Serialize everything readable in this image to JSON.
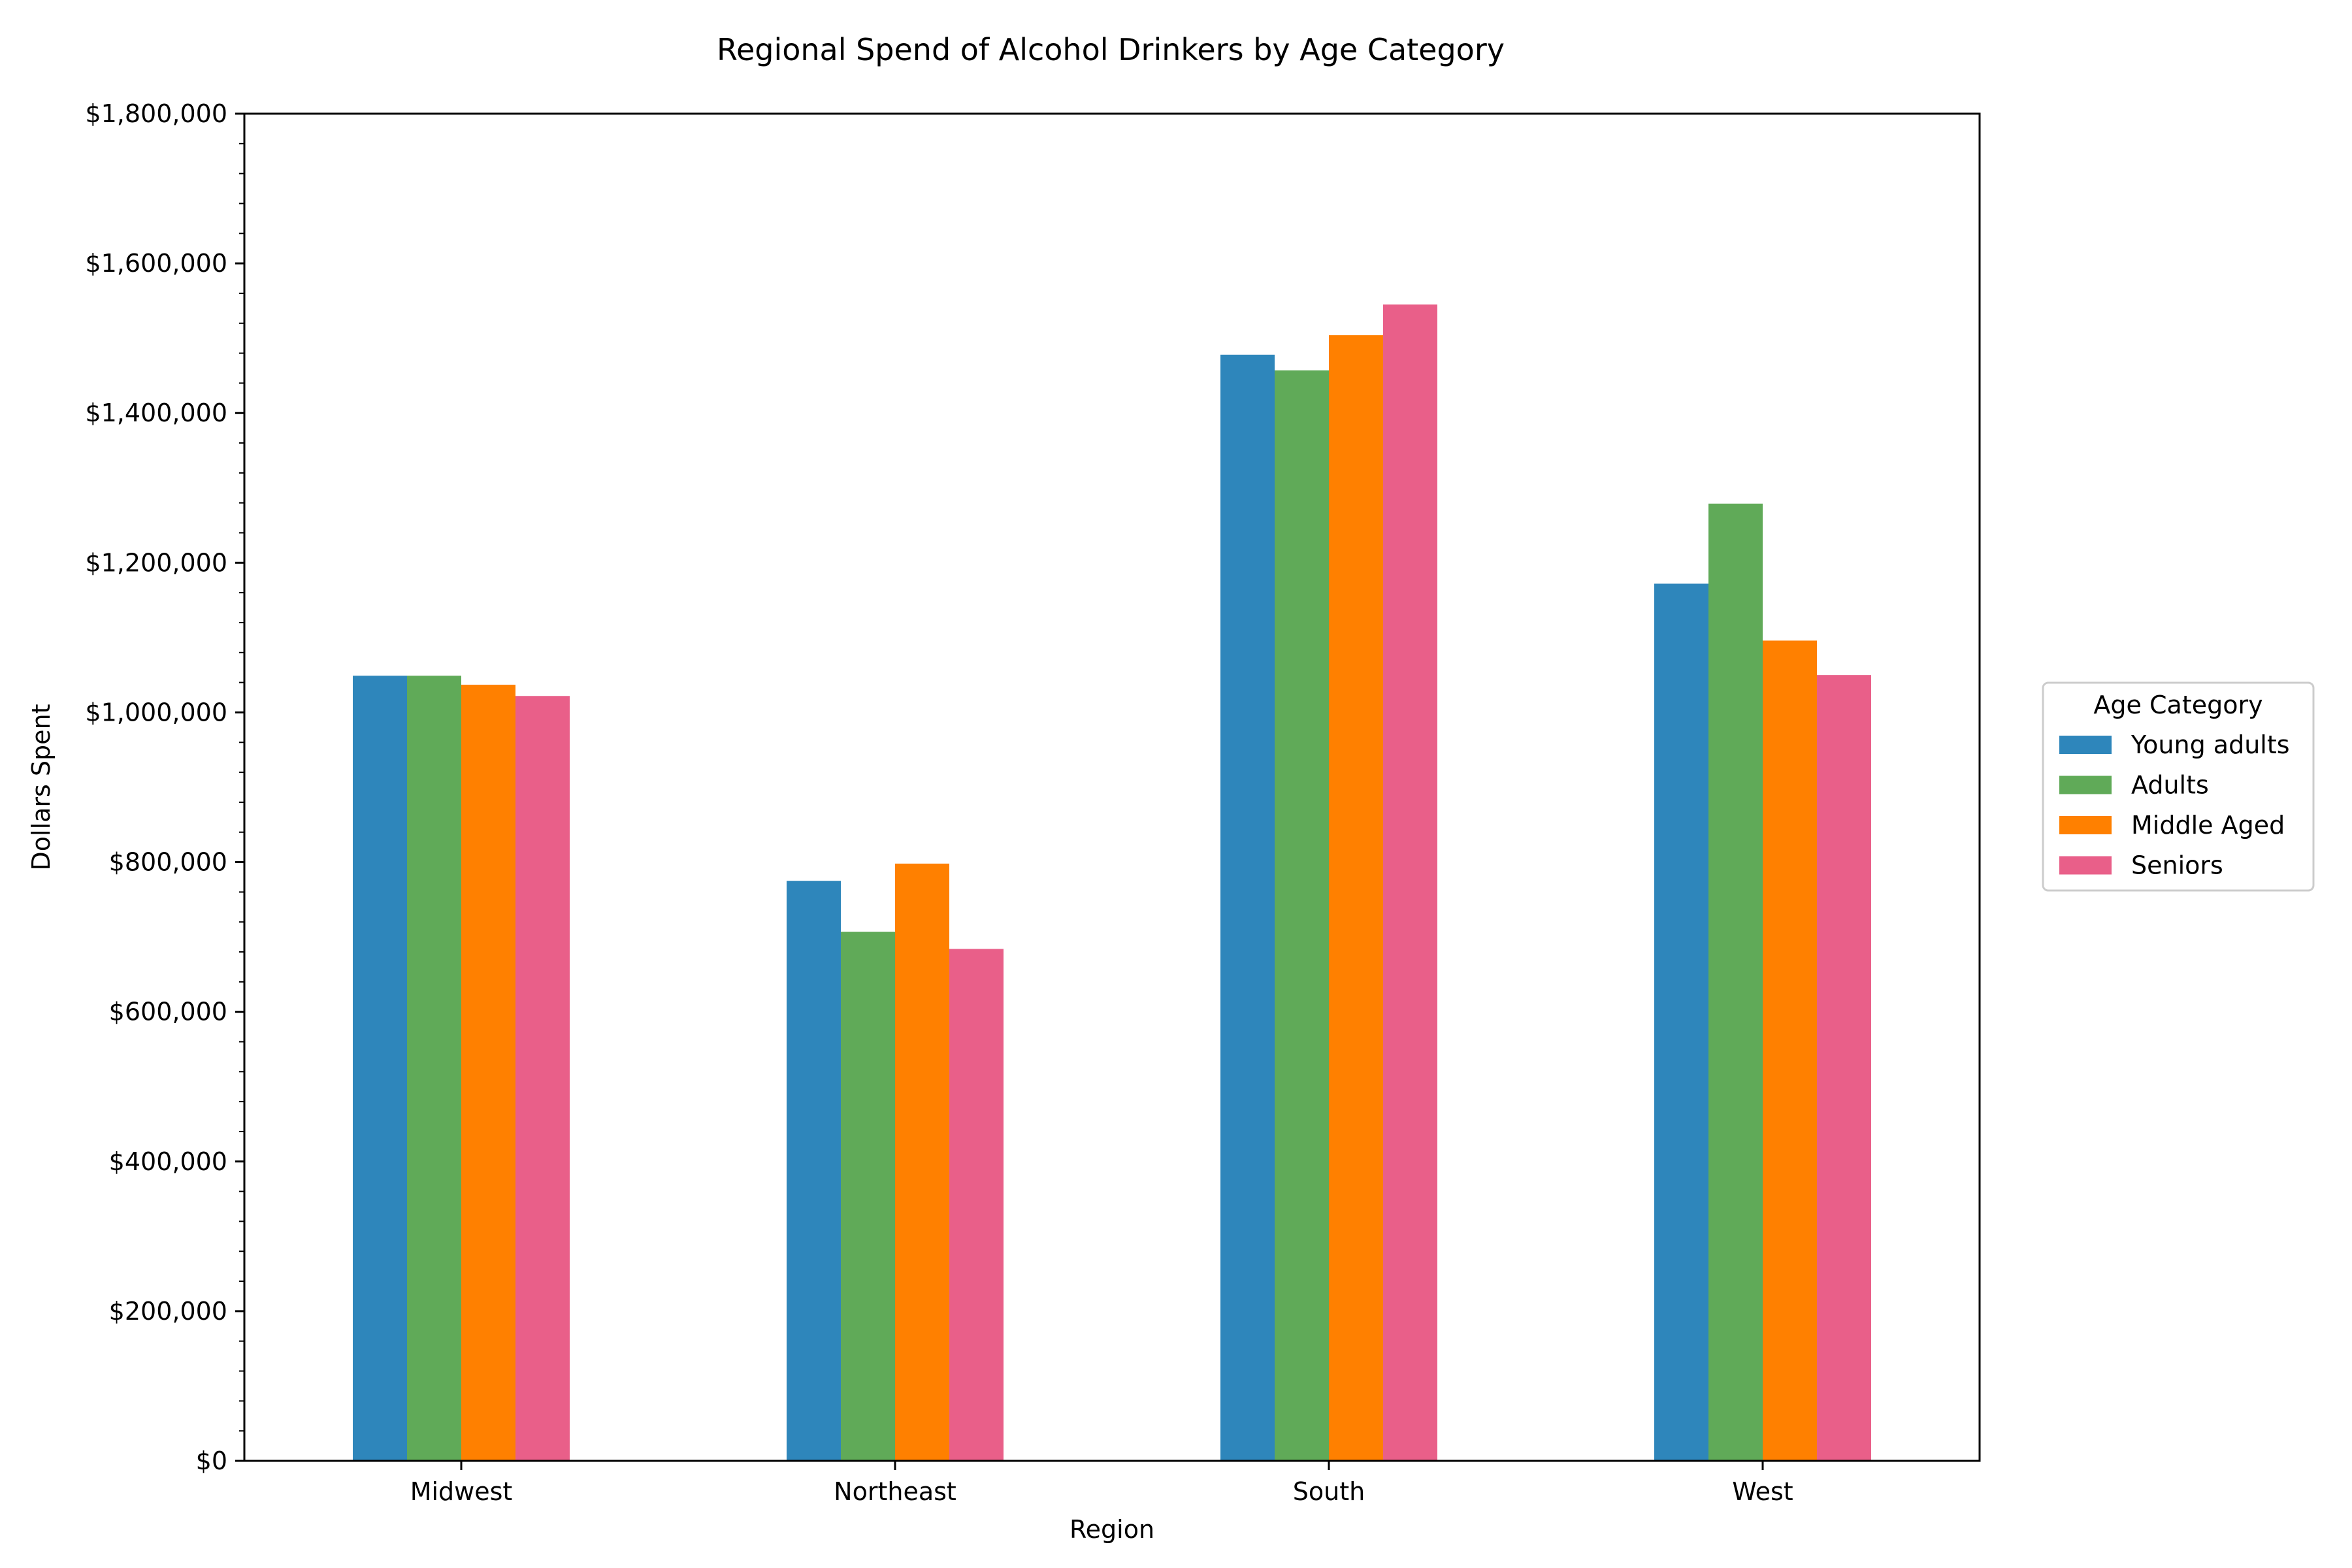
{
  "chart_data": {
    "type": "bar",
    "title": "Regional Spend of Alcohol Drinkers by Age Category",
    "xlabel": "Region",
    "ylabel": "Dollars Spent",
    "categories": [
      "Midwest",
      "Northeast",
      "South",
      "West"
    ],
    "series": [
      {
        "name": "Young adults",
        "color": "#2e86bb",
        "values": [
          1049000,
          775000,
          1478000,
          1172000
        ]
      },
      {
        "name": "Adults",
        "color": "#60aa58",
        "values": [
          1049000,
          707000,
          1457000,
          1279000
        ]
      },
      {
        "name": "Middle Aged",
        "color": "#ff8000",
        "values": [
          1037000,
          798000,
          1504000,
          1096000
        ]
      },
      {
        "name": "Seniors",
        "color": "#e95f89",
        "values": [
          1022000,
          684000,
          1545000,
          1050000
        ]
      }
    ],
    "ylim": [
      0,
      1800000
    ],
    "yticks": [
      0,
      200000,
      400000,
      600000,
      800000,
      1000000,
      1200000,
      1400000,
      1600000,
      1800000
    ],
    "ytick_labels": [
      "$0",
      "$200,000",
      "$400,000",
      "$600,000",
      "$800,000",
      "$1,000,000",
      "$1,200,000",
      "$1,400,000",
      "$1,600,000",
      "$1,800,000"
    ],
    "minor_ticks_per_major": 4,
    "grid": false,
    "legend": {
      "title": "Age Category",
      "placement": "center-right outside"
    }
  }
}
